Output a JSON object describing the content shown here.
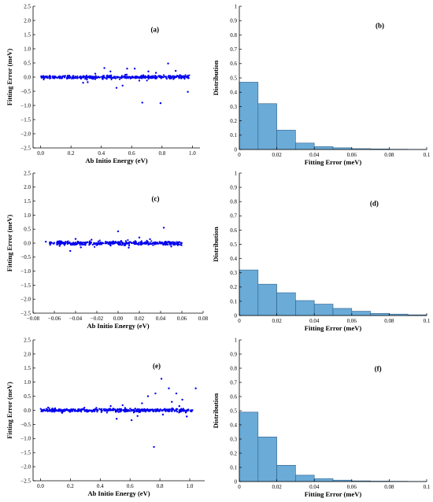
{
  "chart_data": [
    {
      "panel": "(a)",
      "type": "scatter",
      "xlabel": "Ab Initio Energy (eV)",
      "ylabel": "Fitting Error (meV)",
      "xlim": [
        -0.05,
        1.05
      ],
      "ylim": [
        -2.5,
        2.5
      ],
      "xticks": [
        "0.0",
        "0.2",
        "0.4",
        "0.6",
        "0.8",
        "1.0"
      ],
      "xtick_values": [
        0,
        0.2,
        0.4,
        0.6,
        0.8,
        1.0
      ],
      "yticks": [
        "2.5",
        "2.0",
        "1.5",
        "1.0",
        "0.5",
        "0.0",
        "−0.5",
        "−1.0",
        "−1.5",
        "−2.0",
        "−2.5"
      ],
      "ytick_values": [
        2.5,
        2.0,
        1.5,
        1.0,
        0.5,
        0.0,
        -0.5,
        -1.0,
        -1.5,
        -2.0,
        -2.5
      ],
      "dense_band": {
        "x_range": [
          0.0,
          0.98
        ],
        "y_spread": 0.06,
        "count": 420
      },
      "outliers": [
        {
          "x": 0.42,
          "y": 0.32
        },
        {
          "x": 0.57,
          "y": 0.3
        },
        {
          "x": 0.62,
          "y": 0.3
        },
        {
          "x": 0.84,
          "y": 0.48
        },
        {
          "x": 0.67,
          "y": -0.9
        },
        {
          "x": 0.79,
          "y": -0.92
        },
        {
          "x": 0.97,
          "y": -0.52
        },
        {
          "x": 0.5,
          "y": -0.38
        },
        {
          "x": 0.54,
          "y": -0.3
        },
        {
          "x": 0.28,
          "y": -0.2
        },
        {
          "x": 0.31,
          "y": -0.18
        },
        {
          "x": 0.71,
          "y": 0.2
        },
        {
          "x": 0.76,
          "y": 0.15
        },
        {
          "x": 0.89,
          "y": 0.22
        },
        {
          "x": 0.46,
          "y": 0.2
        },
        {
          "x": 0.36,
          "y": 0.12
        }
      ]
    },
    {
      "panel": "(b)",
      "type": "bar",
      "xlabel": "Fitting Error (meV)",
      "ylabel": "Distribution",
      "xlim": [
        0,
        0.1
      ],
      "ylim": [
        0,
        1
      ],
      "bin_width": 0.01,
      "bin_starts": [
        0,
        0.01,
        0.02,
        0.03,
        0.04,
        0.05,
        0.06,
        0.07,
        0.08,
        0.09
      ],
      "values": [
        0.47,
        0.32,
        0.135,
        0.045,
        0.02,
        0.012,
        0.006,
        0.004,
        0.002,
        0.001
      ],
      "xticks": [
        "0",
        "0.02",
        "0.04",
        "0.06",
        "0.08",
        "0.1"
      ],
      "xtick_values": [
        0,
        0.02,
        0.04,
        0.06,
        0.08,
        0.1
      ],
      "yticks": [
        "1",
        "0.9",
        "0.8",
        "0.7",
        "0.6",
        "0.5",
        "0.4",
        "0.3",
        "0.2",
        "0.1",
        "0"
      ],
      "ytick_values": [
        1,
        0.9,
        0.8,
        0.7,
        0.6,
        0.5,
        0.4,
        0.3,
        0.2,
        0.1,
        0
      ]
    },
    {
      "panel": "(c)",
      "type": "scatter",
      "xlabel": "Ab Initio Energy (eV)",
      "ylabel": "Fitting Error (meV)",
      "xlim": [
        -0.08,
        0.08
      ],
      "ylim": [
        -2.5,
        2.5
      ],
      "xticks": [
        "−0.08",
        "−0.06",
        "−0.04",
        "−0.02",
        "0.00",
        "0.02",
        "0.04",
        "0.06",
        "0.08"
      ],
      "xtick_values": [
        -0.08,
        -0.06,
        -0.04,
        -0.02,
        0.0,
        0.02,
        0.04,
        0.06,
        0.08
      ],
      "yticks": [
        "2.5",
        "2.0",
        "1.5",
        "1.0",
        "0.5",
        "0.0",
        "−0.5",
        "−1.0",
        "−1.5",
        "−2.0",
        "−2.5"
      ],
      "ytick_values": [
        2.5,
        2.0,
        1.5,
        1.0,
        0.5,
        0.0,
        -0.5,
        -1.0,
        -1.5,
        -2.0,
        -2.5
      ],
      "dense_band": {
        "x_range": [
          -0.065,
          0.06
        ],
        "y_spread": 0.07,
        "count": 420
      },
      "outliers": [
        {
          "x": 0.043,
          "y": 0.55
        },
        {
          "x": 0.0,
          "y": 0.42
        },
        {
          "x": -0.045,
          "y": -0.28
        },
        {
          "x": -0.04,
          "y": 0.15
        },
        {
          "x": -0.025,
          "y": 0.12
        },
        {
          "x": -0.035,
          "y": -0.15
        },
        {
          "x": 0.01,
          "y": -0.16
        },
        {
          "x": 0.03,
          "y": 0.14
        },
        {
          "x": -0.068,
          "y": 0.05
        },
        {
          "x": -0.055,
          "y": -0.1
        },
        {
          "x": 0.05,
          "y": -0.12
        },
        {
          "x": 0.02,
          "y": 0.2
        }
      ]
    },
    {
      "panel": "(d)",
      "type": "bar",
      "xlabel": "Fitting Error (meV)",
      "ylabel": "Distribution",
      "xlim": [
        0,
        0.1
      ],
      "ylim": [
        0,
        1
      ],
      "bin_width": 0.01,
      "bin_starts": [
        0,
        0.01,
        0.02,
        0.03,
        0.04,
        0.05,
        0.06,
        0.07,
        0.08,
        0.09
      ],
      "values": [
        0.32,
        0.22,
        0.16,
        0.105,
        0.08,
        0.05,
        0.03,
        0.015,
        0.01,
        0.005
      ],
      "xticks": [
        "0",
        "0.02",
        "0.04",
        "0.06",
        "0.08",
        "0.1"
      ],
      "xtick_values": [
        0,
        0.02,
        0.04,
        0.06,
        0.08,
        0.1
      ],
      "yticks": [
        "1",
        "0.9",
        "0.8",
        "0.7",
        "0.6",
        "0.5",
        "0.4",
        "0.3",
        "0.2",
        "0.1",
        "0"
      ],
      "ytick_values": [
        1,
        0.9,
        0.8,
        0.7,
        0.6,
        0.5,
        0.4,
        0.3,
        0.2,
        0.1,
        0
      ]
    },
    {
      "panel": "(e)",
      "type": "scatter",
      "xlabel": "Ab Initio Energy (eV)",
      "ylabel": "Fitting Error (meV)",
      "xlim": [
        -0.05,
        1.1
      ],
      "ylim": [
        -2.5,
        2.5
      ],
      "xticks": [
        "0.0",
        "0.2",
        "0.4",
        "0.6",
        "0.8",
        "1.0"
      ],
      "xtick_values": [
        0,
        0.2,
        0.4,
        0.6,
        0.8,
        1.0
      ],
      "yticks": [
        "2.5",
        "2.0",
        "1.5",
        "1.0",
        "0.5",
        "0.0",
        "−0.5",
        "−1.0",
        "−1.5",
        "−2.0",
        "−2.5"
      ],
      "ytick_values": [
        2.5,
        2.0,
        1.5,
        1.0,
        0.5,
        0.0,
        -0.5,
        -1.0,
        -1.5,
        -2.0,
        -2.5
      ],
      "dense_band": {
        "x_range": [
          0.0,
          1.03
        ],
        "y_spread": 0.06,
        "count": 440
      },
      "outliers": [
        {
          "x": 0.81,
          "y": 1.12
        },
        {
          "x": 0.86,
          "y": 0.78
        },
        {
          "x": 1.04,
          "y": 0.78
        },
        {
          "x": 0.77,
          "y": 0.6
        },
        {
          "x": 0.72,
          "y": 0.5
        },
        {
          "x": 0.91,
          "y": 0.6
        },
        {
          "x": 0.95,
          "y": 0.38
        },
        {
          "x": 0.76,
          "y": -1.3
        },
        {
          "x": 0.61,
          "y": -0.35
        },
        {
          "x": 0.51,
          "y": -0.3
        },
        {
          "x": 0.98,
          "y": -0.22
        },
        {
          "x": 0.82,
          "y": -0.15
        },
        {
          "x": 0.68,
          "y": 0.25
        },
        {
          "x": 0.55,
          "y": 0.18
        },
        {
          "x": 0.88,
          "y": 0.3
        },
        {
          "x": 0.47,
          "y": 0.15
        },
        {
          "x": 0.65,
          "y": -0.2
        },
        {
          "x": 0.93,
          "y": 0.15
        }
      ]
    },
    {
      "panel": "(f)",
      "type": "bar",
      "xlabel": "Fitting Error (meV)",
      "ylabel": "Distribution",
      "xlim": [
        0,
        0.1
      ],
      "ylim": [
        0,
        1
      ],
      "bin_width": 0.01,
      "bin_starts": [
        0,
        0.01,
        0.02,
        0.03,
        0.04,
        0.05,
        0.06,
        0.07,
        0.08,
        0.09
      ],
      "values": [
        0.49,
        0.315,
        0.115,
        0.045,
        0.02,
        0.01,
        0.005,
        0.003,
        0.002,
        0.001
      ],
      "xticks": [
        "0",
        "0.02",
        "0.04",
        "0.06",
        "0.08",
        "0.1"
      ],
      "xtick_values": [
        0,
        0.02,
        0.04,
        0.06,
        0.08,
        0.1
      ],
      "yticks": [
        "1",
        "0.9",
        "0.8",
        "0.7",
        "0.6",
        "0.5",
        "0.4",
        "0.3",
        "0.2",
        "0.1",
        "0"
      ],
      "ytick_values": [
        1,
        0.9,
        0.8,
        0.7,
        0.6,
        0.5,
        0.4,
        0.3,
        0.2,
        0.1,
        0
      ]
    }
  ],
  "colors": {
    "scatter_point": "#0000ee",
    "bar_fill": "#6aabd8",
    "bar_stroke": "#2f5f8a",
    "axis": "#000000"
  }
}
